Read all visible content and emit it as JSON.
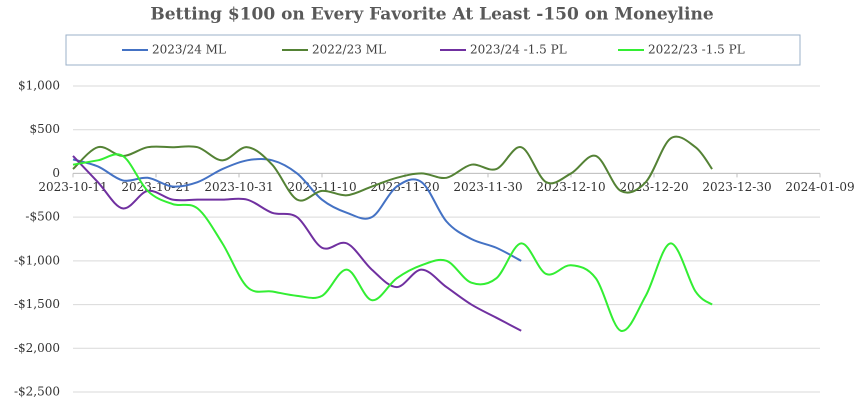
{
  "chart_data": {
    "type": "line",
    "title": "Betting $100 on Every Favorite At Least -150 on Moneyline",
    "x": [
      "2023-10-11",
      "2023-10-14",
      "2023-10-17",
      "2023-10-20",
      "2023-10-23",
      "2023-10-26",
      "2023-10-29",
      "2023-11-01",
      "2023-11-04",
      "2023-11-07",
      "2023-11-10",
      "2023-11-13",
      "2023-11-16",
      "2023-11-19",
      "2023-11-22",
      "2023-11-25",
      "2023-11-28",
      "2023-12-01",
      "2023-12-04",
      "2023-12-07",
      "2023-12-10",
      "2023-12-13",
      "2023-12-16",
      "2023-12-19",
      "2023-12-22",
      "2023-12-25",
      "2023-12-27"
    ],
    "series": [
      {
        "name": "2023/24 ML",
        "color": "#4472c4",
        "values": [
          160,
          80,
          -80,
          -50,
          -150,
          -100,
          50,
          150,
          150,
          0,
          -300,
          -450,
          -500,
          -150,
          -100,
          -550,
          -750,
          -850,
          -1000,
          null,
          null,
          null,
          null,
          null,
          null,
          null,
          null
        ]
      },
      {
        "name": "2022/23 ML",
        "color": "#548235",
        "values": [
          50,
          300,
          200,
          300,
          300,
          300,
          150,
          300,
          100,
          -300,
          -200,
          -250,
          -150,
          -50,
          0,
          -50,
          100,
          50,
          300,
          -100,
          0,
          200,
          -200,
          -100,
          400,
          300,
          50
        ]
      },
      {
        "name": "2023/24 -1.5 PL",
        "color": "#7030a0",
        "values": [
          200,
          -100,
          -400,
          -200,
          -300,
          -300,
          -300,
          -300,
          -450,
          -500,
          -850,
          -800,
          -1100,
          -1300,
          -1100,
          -1300,
          -1500,
          -1650,
          -1800,
          null,
          null,
          null,
          null,
          null,
          null,
          null,
          null
        ]
      },
      {
        "name": "2022/23 -1.5 PL",
        "color": "#33ee33",
        "values": [
          100,
          150,
          200,
          -200,
          -350,
          -400,
          -800,
          -1300,
          -1350,
          -1400,
          -1400,
          -1100,
          -1450,
          -1200,
          -1050,
          -1000,
          -1250,
          -1200,
          -800,
          -1150,
          -1050,
          -1200,
          -1800,
          -1400,
          -800,
          -1350,
          -1500
        ]
      }
    ],
    "xlim": [
      "2023-10-11",
      "2024-01-09"
    ],
    "xticks": [
      "2023-10-11",
      "2023-10-21",
      "2023-10-31",
      "2023-11-10",
      "2023-11-20",
      "2023-11-30",
      "2023-12-10",
      "2023-12-20",
      "2023-12-30",
      "2024-01-09"
    ],
    "ylim": [
      -2500,
      1000
    ],
    "yticks": [
      {
        "value": 1000,
        "label": "$1,000"
      },
      {
        "value": 500,
        "label": "$500"
      },
      0,
      {
        "value": -500,
        "label": "-$500"
      },
      {
        "value": -1000,
        "label": "-$1,000"
      },
      {
        "value": -1500,
        "label": "-$1,500"
      },
      {
        "value": -2000,
        "label": "-$2,000"
      },
      {
        "value": -2500,
        "label": "-$2,500"
      }
    ],
    "grid": true,
    "legend": "top",
    "negative_tick_color": "#c00000"
  }
}
